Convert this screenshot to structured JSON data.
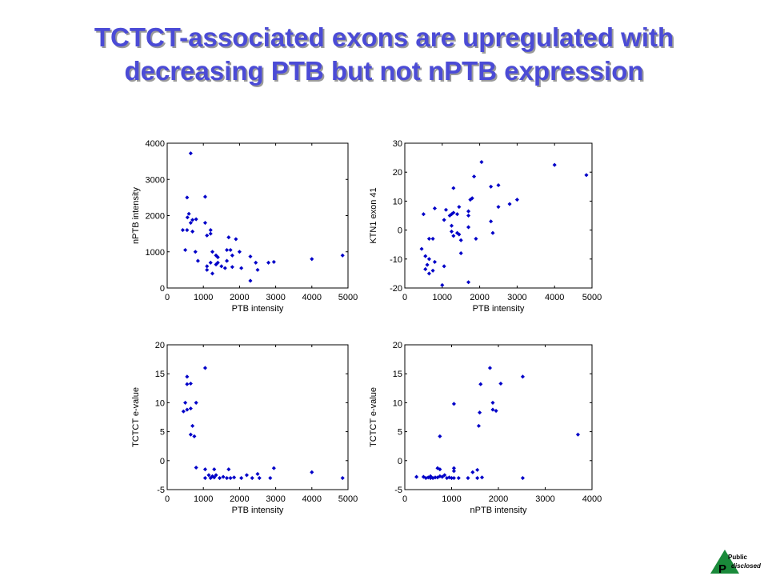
{
  "title": {
    "line1": "TCTCT-associated exons are upregulated with",
    "line2": "decreasing PTB but not nPTB expression",
    "color": "#4b4bd6"
  },
  "logo": {
    "line1": "Public",
    "line2": "disclosed",
    "letter": "P"
  },
  "marker_color": "#0000c8",
  "chart_data": [
    {
      "type": "scatter",
      "xlabel": "PTB intensity",
      "ylabel": "nPTB intensity",
      "xlim": [
        0,
        5000
      ],
      "ylim": [
        0,
        4000
      ],
      "xticks": [
        0,
        1000,
        2000,
        3000,
        4000,
        5000
      ],
      "yticks": [
        0,
        1000,
        2000,
        3000,
        4000
      ],
      "points": [
        [
          650,
          3720
        ],
        [
          550,
          2500
        ],
        [
          1050,
          2520
        ],
        [
          600,
          2050
        ],
        [
          560,
          1950
        ],
        [
          700,
          1880
        ],
        [
          800,
          1900
        ],
        [
          650,
          1800
        ],
        [
          1050,
          1800
        ],
        [
          1200,
          1600
        ],
        [
          1200,
          1500
        ],
        [
          1100,
          1450
        ],
        [
          430,
          1600
        ],
        [
          550,
          1600
        ],
        [
          700,
          1560
        ],
        [
          1700,
          1400
        ],
        [
          1900,
          1350
        ],
        [
          2000,
          1000
        ],
        [
          1250,
          1000
        ],
        [
          1400,
          850
        ],
        [
          1350,
          900
        ],
        [
          1650,
          1050
        ],
        [
          1750,
          1050
        ],
        [
          1800,
          900
        ],
        [
          2300,
          870
        ],
        [
          2450,
          700
        ],
        [
          2500,
          500
        ],
        [
          1650,
          750
        ],
        [
          1100,
          600
        ],
        [
          1200,
          700
        ],
        [
          1350,
          650
        ],
        [
          1400,
          700
        ],
        [
          1600,
          550
        ],
        [
          1800,
          580
        ],
        [
          2050,
          550
        ],
        [
          2800,
          700
        ],
        [
          2950,
          720
        ],
        [
          4000,
          800
        ],
        [
          4850,
          900
        ],
        [
          500,
          1050
        ],
        [
          780,
          1000
        ],
        [
          850,
          750
        ],
        [
          1100,
          500
        ],
        [
          1250,
          400
        ],
        [
          1500,
          600
        ],
        [
          2300,
          200
        ]
      ]
    },
    {
      "type": "scatter",
      "xlabel": "PTB intensity",
      "ylabel": "KTN1 exon 41",
      "xlim": [
        0,
        5000
      ],
      "ylim": [
        -20,
        30
      ],
      "xticks": [
        0,
        1000,
        2000,
        3000,
        4000,
        5000
      ],
      "yticks": [
        -20,
        -10,
        0,
        10,
        20,
        30
      ],
      "points": [
        [
          2050,
          23.5
        ],
        [
          4000,
          22.5
        ],
        [
          4850,
          19
        ],
        [
          1850,
          18.5
        ],
        [
          2500,
          15.5
        ],
        [
          2300,
          15
        ],
        [
          1300,
          14.5
        ],
        [
          1800,
          11
        ],
        [
          1750,
          10.5
        ],
        [
          3000,
          10.5
        ],
        [
          2800,
          9
        ],
        [
          1450,
          8
        ],
        [
          2500,
          8
        ],
        [
          800,
          7.5
        ],
        [
          1100,
          7
        ],
        [
          1300,
          6
        ],
        [
          1700,
          6.5
        ],
        [
          1250,
          5.5
        ],
        [
          1400,
          5.5
        ],
        [
          1200,
          5
        ],
        [
          500,
          5.5
        ],
        [
          1700,
          5
        ],
        [
          1050,
          3.5
        ],
        [
          2300,
          3
        ],
        [
          1250,
          1.5
        ],
        [
          1700,
          1
        ],
        [
          1250,
          -0.5
        ],
        [
          1400,
          -1
        ],
        [
          2350,
          -1
        ],
        [
          1450,
          -1.5
        ],
        [
          1300,
          -2
        ],
        [
          1900,
          -3
        ],
        [
          650,
          -3
        ],
        [
          750,
          -3
        ],
        [
          1500,
          -3.5
        ],
        [
          450,
          -6.5
        ],
        [
          1500,
          -8
        ],
        [
          550,
          -9
        ],
        [
          650,
          -10
        ],
        [
          800,
          -11
        ],
        [
          600,
          -12
        ],
        [
          1050,
          -12.5
        ],
        [
          550,
          -13.5
        ],
        [
          750,
          -14
        ],
        [
          650,
          -15
        ],
        [
          1700,
          -18
        ],
        [
          1000,
          -19
        ]
      ]
    },
    {
      "type": "scatter",
      "xlabel": "PTB intensity",
      "ylabel": "TCTCT e-value",
      "xlim": [
        0,
        5000
      ],
      "ylim": [
        -5,
        20
      ],
      "xticks": [
        0,
        1000,
        2000,
        3000,
        4000,
        5000
      ],
      "yticks": [
        -5,
        0,
        5,
        10,
        15,
        20
      ],
      "points": [
        [
          1050,
          16
        ],
        [
          550,
          14.5
        ],
        [
          550,
          13.2
        ],
        [
          650,
          13.3
        ],
        [
          500,
          10
        ],
        [
          800,
          10
        ],
        [
          650,
          9
        ],
        [
          550,
          8.8
        ],
        [
          450,
          8.5
        ],
        [
          700,
          6
        ],
        [
          650,
          4.5
        ],
        [
          750,
          4.2
        ],
        [
          800,
          -1.2
        ],
        [
          1050,
          -1.5
        ],
        [
          1300,
          -1.5
        ],
        [
          1700,
          -1.5
        ],
        [
          2950,
          -1.3
        ],
        [
          4000,
          -2
        ],
        [
          2200,
          -2.5
        ],
        [
          2500,
          -2.3
        ],
        [
          1150,
          -2.5
        ],
        [
          1250,
          -2.7
        ],
        [
          1350,
          -2.5
        ],
        [
          1550,
          -2.8
        ],
        [
          1850,
          -2.9
        ],
        [
          2050,
          -3
        ],
        [
          2350,
          -3
        ],
        [
          1050,
          -3
        ],
        [
          1200,
          -3
        ],
        [
          1300,
          -2.9
        ],
        [
          1450,
          -3
        ],
        [
          1650,
          -3
        ],
        [
          1750,
          -3
        ],
        [
          2850,
          -3
        ],
        [
          2550,
          -3
        ],
        [
          4850,
          -3
        ]
      ]
    },
    {
      "type": "scatter",
      "xlabel": "nPTB intensity",
      "ylabel": "TCTCT e-value",
      "xlim": [
        0,
        4000
      ],
      "ylim": [
        -5,
        20
      ],
      "xticks": [
        0,
        1000,
        2000,
        3000,
        4000
      ],
      "yticks": [
        -5,
        0,
        5,
        10,
        15,
        20
      ],
      "points": [
        [
          1820,
          16
        ],
        [
          2520,
          14.5
        ],
        [
          1620,
          13.2
        ],
        [
          2050,
          13.3
        ],
        [
          1880,
          10
        ],
        [
          1050,
          9.8
        ],
        [
          1880,
          8.8
        ],
        [
          1950,
          8.6
        ],
        [
          1600,
          8.3
        ],
        [
          1580,
          6
        ],
        [
          3700,
          4.5
        ],
        [
          750,
          4.2
        ],
        [
          700,
          -1.3
        ],
        [
          750,
          -1.5
        ],
        [
          1050,
          -1.3
        ],
        [
          1050,
          -1.8
        ],
        [
          1450,
          -2
        ],
        [
          1550,
          -1.6
        ],
        [
          250,
          -2.8
        ],
        [
          400,
          -2.8
        ],
        [
          450,
          -3
        ],
        [
          500,
          -2.9
        ],
        [
          550,
          -2.7
        ],
        [
          550,
          -3
        ],
        [
          600,
          -3
        ],
        [
          650,
          -2.9
        ],
        [
          700,
          -2.9
        ],
        [
          750,
          -2.7
        ],
        [
          800,
          -2.8
        ],
        [
          850,
          -2.5
        ],
        [
          900,
          -3
        ],
        [
          950,
          -2.9
        ],
        [
          1000,
          -3
        ],
        [
          1050,
          -3
        ],
        [
          1150,
          -3
        ],
        [
          1350,
          -3
        ],
        [
          1550,
          -3
        ],
        [
          1650,
          -2.9
        ],
        [
          2520,
          -3
        ]
      ]
    }
  ]
}
